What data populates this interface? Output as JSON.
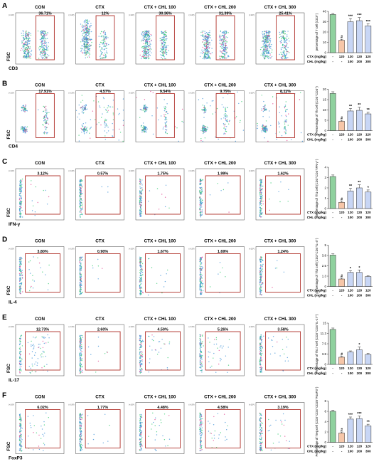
{
  "figure": {
    "panel_titles": [
      "CON",
      "CTX",
      "CTX + CHL 100",
      "CTX + CHL 200",
      "CTX + CHL 300"
    ],
    "y_axis_label": "FSC",
    "axis_exponent": "(×10³)",
    "table_row_labels": [
      "CTX (mg/kg)",
      "CHL (mg/kg)"
    ],
    "table_ctx": [
      "-",
      "120",
      "120",
      "120",
      "120"
    ],
    "table_chl": [
      "-",
      "-",
      "100",
      "200",
      "300"
    ],
    "hash_mark": "#"
  },
  "colors": {
    "con_bar": "#8fd19e",
    "ctx_bar": "#f6c6a8",
    "chl_bar": "#c8d6f5",
    "gate": "#b0302a",
    "dots_low": "#3b8fd6",
    "dots_high": "#2cc86a",
    "dots_hot": "#e03a8a"
  },
  "chart_data": [
    {
      "type": "bar",
      "panel": "A",
      "marker": "CD3",
      "gate_percentages": [
        "36.71%",
        "12%",
        "30.36%",
        "31.39%",
        "25.41%"
      ],
      "ylabel": "percentage of T cell (CD3⁺)",
      "categories": [
        "CON",
        "CTX",
        "CTX + CHL 100",
        "CTX + CHL 200",
        "CTX + CHL 300"
      ],
      "values": [
        37,
        12,
        30,
        31,
        26
      ],
      "errors": [
        1,
        1,
        3,
        3,
        2
      ],
      "ylim": [
        0,
        40
      ],
      "significance": [
        "",
        "#",
        "***",
        "***",
        "***"
      ]
    },
    {
      "type": "bar",
      "panel": "B",
      "marker": "CD4",
      "gate_percentages": [
        "17.91%",
        "4.57%",
        "9.54%",
        "9.79%",
        "8.11%"
      ],
      "ylabel": "Percentage of Th cell (CD3⁺CD4⁺)",
      "categories": [
        "CON",
        "CTX",
        "CTX + CHL 100",
        "CTX + CHL 200",
        "CTX + CHL 300"
      ],
      "values": [
        18,
        4.5,
        9.5,
        9.8,
        8.1
      ],
      "errors": [
        0.8,
        0.5,
        1.2,
        1.5,
        0.8
      ],
      "ylim": [
        0,
        20
      ],
      "significance": [
        "",
        "#",
        "**",
        "**",
        "**"
      ]
    },
    {
      "type": "bar",
      "panel": "C",
      "marker": "IFN-γ",
      "gate_percentages": [
        "3.12%",
        "0.57%",
        "1.75%",
        "1.99%",
        "1.62%"
      ],
      "ylabel": "percentage of Th1 cell (CD3⁺CD4⁺IFN-γ⁺)",
      "categories": [
        "CON",
        "CTX",
        "CTX + CHL 100",
        "CTX + CHL 200",
        "CTX + CHL 300"
      ],
      "values": [
        3.1,
        0.6,
        1.7,
        2.0,
        1.6
      ],
      "errors": [
        0.15,
        0.1,
        0.25,
        0.3,
        0.2
      ],
      "ylim": [
        0,
        4
      ],
      "significance": [
        "",
        "#",
        "**",
        "**",
        "*"
      ]
    },
    {
      "type": "bar",
      "panel": "D",
      "marker": "IL-4",
      "gate_percentages": [
        "3.80%",
        "0.90%",
        "1.67%",
        "1.69%",
        "1.24%"
      ],
      "ylabel": "percentage of Th2 cell (CD3⁺CD4⁺IL-4⁺)",
      "categories": [
        "CON",
        "CTX",
        "CTX + CHL 100",
        "CTX + CHL 200",
        "CTX + CHL 300"
      ],
      "values": [
        3.8,
        0.9,
        1.7,
        1.7,
        1.2
      ],
      "errors": [
        0.15,
        0.1,
        0.2,
        0.3,
        0.1
      ],
      "ylim": [
        0,
        5
      ],
      "significance": [
        "",
        "#",
        "*",
        "*",
        ""
      ]
    },
    {
      "type": "bar",
      "panel": "E",
      "marker": "IL-17",
      "gate_percentages": [
        "12.73%",
        "2.60%",
        "4.50%",
        "5.26%",
        "3.58%"
      ],
      "ylabel": "Percentage of Th17 cell (CD3⁺CD4⁺IL-17⁺)",
      "categories": [
        "CON",
        "CTX",
        "CTX + CHL 100",
        "CTX + CHL 200",
        "CTX + CHL 300"
      ],
      "values": [
        12.7,
        2.6,
        4.5,
        5.3,
        3.6
      ],
      "errors": [
        0.5,
        0.3,
        0.4,
        1.0,
        0.4
      ],
      "ylim": [
        0,
        15
      ],
      "significance": [
        "",
        "#",
        "",
        "*",
        ""
      ]
    },
    {
      "type": "bar",
      "panel": "F",
      "marker": "FoxP3",
      "gate_percentages": [
        "6.02%",
        "1.77%",
        "4.48%",
        "4.58%",
        "3.19%"
      ],
      "ylabel": "Percentage of Treg cell (CD3⁺CD4⁺CD25⁺FoxP3⁺)",
      "categories": [
        "CON",
        "CTX",
        "CTX + CHL 100",
        "CTX + CHL 200",
        "CTX + CHL 300"
      ],
      "values": [
        6.0,
        1.8,
        4.5,
        4.6,
        3.2
      ],
      "errors": [
        0.2,
        0.2,
        0.4,
        0.5,
        0.3
      ],
      "ylim": [
        0,
        8
      ],
      "significance": [
        "",
        "#",
        "***",
        "***",
        "**"
      ]
    }
  ]
}
